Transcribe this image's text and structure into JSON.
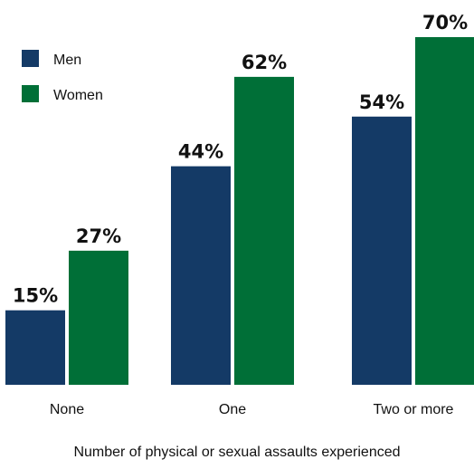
{
  "chart_data": {
    "type": "bar",
    "categories": [
      "None",
      "One",
      "Two or more"
    ],
    "series": [
      {
        "name": "Men",
        "values": [
          15,
          44,
          54
        ],
        "labels": [
          "15%",
          "44%",
          "54%"
        ],
        "color": "#143a66"
      },
      {
        "name": "Women",
        "values": [
          27,
          62,
          70
        ],
        "labels": [
          "27%",
          "62%",
          "70%"
        ],
        "color": "#006f37"
      }
    ],
    "title": "",
    "xlabel": "Number of physical or sexual assaults experienced",
    "ylabel": "",
    "ylim": [
      0,
      70
    ],
    "grid": false,
    "legend": "top-left"
  }
}
